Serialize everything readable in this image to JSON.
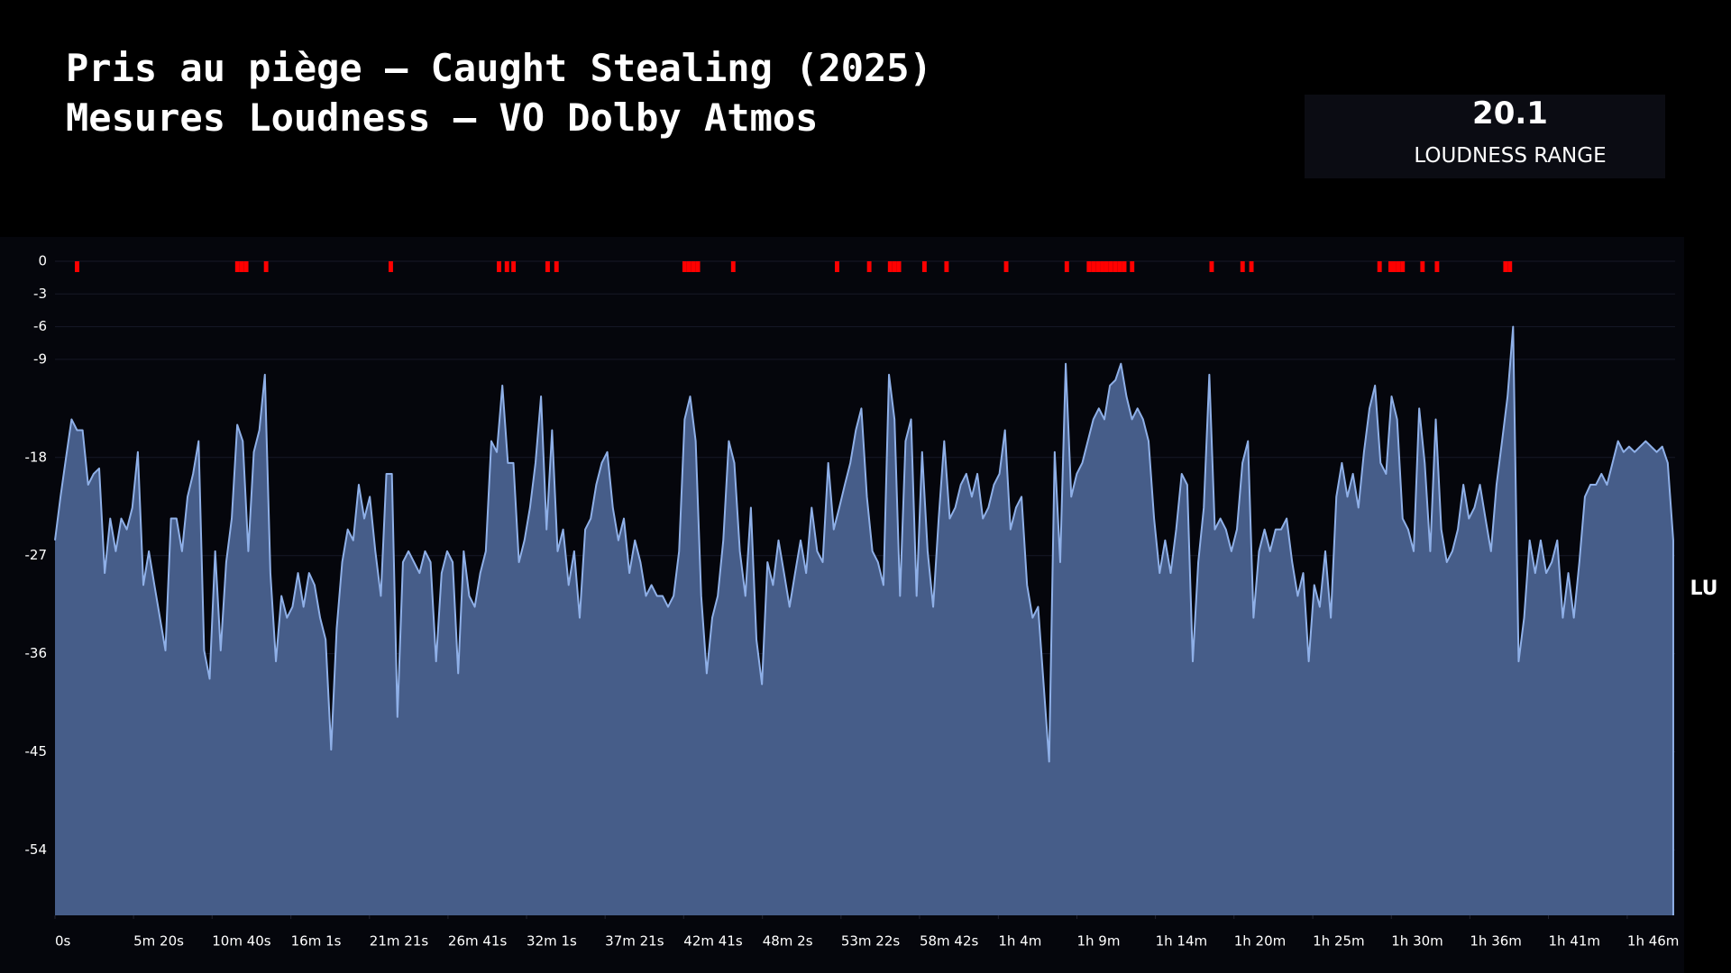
{
  "chart_data": {
    "type": "area",
    "title_lines": [
      "Pris au piège – Caught Stealing (2025)",
      "Mesures Loudness – VO Dolby Atmos"
    ],
    "loudness_range": {
      "value": 20.1,
      "label": "LOUDNESS RANGE"
    },
    "y_label": "LU",
    "ylim": [
      -60,
      0
    ],
    "yticks": [
      0,
      -3,
      -6,
      -9,
      -18,
      -27,
      -36,
      -45,
      -54
    ],
    "zero_tick_color": "#f2c94c",
    "grid": true,
    "xlim": [
      0,
      6600
    ],
    "xticks": [
      {
        "value": 0,
        "label": "0s"
      },
      {
        "value": 320,
        "label": "5m 20s"
      },
      {
        "value": 640,
        "label": "10m 40s"
      },
      {
        "value": 961,
        "label": "16m 1s"
      },
      {
        "value": 1281,
        "label": "21m 21s"
      },
      {
        "value": 1601,
        "label": "26m 41s"
      },
      {
        "value": 1921,
        "label": "32m 1s"
      },
      {
        "value": 2241,
        "label": "37m 21s"
      },
      {
        "value": 2561,
        "label": "42m 41s"
      },
      {
        "value": 2882,
        "label": "48m 2s"
      },
      {
        "value": 3202,
        "label": "53m 22s"
      },
      {
        "value": 3522,
        "label": "58m 42s"
      },
      {
        "value": 3843,
        "label": "1h 4m"
      },
      {
        "value": 4163,
        "label": "1h 9m"
      },
      {
        "value": 4483,
        "label": "1h 14m"
      },
      {
        "value": 4803,
        "label": "1h 20m"
      },
      {
        "value": 5124,
        "label": "1h 25m"
      },
      {
        "value": 5444,
        "label": "1h 30m"
      },
      {
        "value": 5764,
        "label": "1h 36m"
      },
      {
        "value": 6084,
        "label": "1h 41m"
      },
      {
        "value": 6405,
        "label": "1h 46m"
      }
    ],
    "x": [
      0,
      22.5,
      45,
      67.5,
      90,
      112.5,
      135,
      157.5,
      180,
      202.5,
      225,
      247.5,
      270,
      292.5,
      315,
      337.5,
      360,
      382.5,
      405,
      427.5,
      450,
      472.5,
      495,
      517.5,
      540,
      562.5,
      585,
      607.5,
      630,
      652.5,
      675,
      697.5,
      720,
      742.5,
      765,
      787.5,
      810,
      832.5,
      855,
      877.5,
      900,
      922.5,
      945,
      967.5,
      990,
      1012.5,
      1035,
      1057.5,
      1080,
      1102.5,
      1125,
      1147.5,
      1170,
      1192.5,
      1215,
      1237.5,
      1260,
      1282.5,
      1305,
      1327.5,
      1350,
      1372.5,
      1395,
      1417.5,
      1440,
      1462.5,
      1485,
      1507.5,
      1530,
      1552.5,
      1575,
      1597.5,
      1620,
      1642.5,
      1665,
      1687.5,
      1710,
      1732.5,
      1755,
      1777.5,
      1800,
      1822.5,
      1845,
      1867.5,
      1890,
      1912.5,
      1935,
      1957.5,
      1980,
      2002.5,
      2025,
      2047.5,
      2070,
      2092.5,
      2115,
      2137.5,
      2160,
      2182.5,
      2205,
      2227.5,
      2250,
      2272.5,
      2295,
      2317.5,
      2340,
      2362.5,
      2385,
      2407.5,
      2430,
      2452.5,
      2475,
      2497.5,
      2520,
      2542.5,
      2565,
      2587.5,
      2610,
      2632.5,
      2655,
      2677.5,
      2700,
      2722.5,
      2745,
      2767.5,
      2790,
      2812.5,
      2835,
      2857.5,
      2880,
      2902.5,
      2925,
      2947.5,
      2970,
      2992.5,
      3015,
      3037.5,
      3060,
      3082.5,
      3105,
      3127.5,
      3150,
      3172.5,
      3195,
      3217.5,
      3240,
      3262.5,
      3285,
      3307.5,
      3330,
      3352.5,
      3375,
      3397.5,
      3420,
      3442.5,
      3465,
      3487.5,
      3510,
      3532.5,
      3555,
      3577.5,
      3600,
      3622.5,
      3645,
      3667.5,
      3690,
      3712.5,
      3735,
      3757.5,
      3780,
      3802.5,
      3825,
      3847.5,
      3870,
      3892.5,
      3915,
      3937.5,
      3960,
      3982.5,
      4005,
      4027.5,
      4050,
      4072.5,
      4095,
      4117.5,
      4140,
      4162.5,
      4185,
      4207.5,
      4230,
      4252.5,
      4275,
      4297.5,
      4320,
      4342.5,
      4365,
      4387.5,
      4410,
      4432.5,
      4455,
      4477.5,
      4500,
      4522.5,
      4545,
      4567.5,
      4590,
      4612.5,
      4635,
      4657.5,
      4680,
      4702.5,
      4725,
      4747.5,
      4770,
      4792.5,
      4815,
      4837.5,
      4860,
      4882.5,
      4905,
      4927.5,
      4950,
      4972.5,
      4995,
      5017.5,
      5040,
      5062.5,
      5085,
      5107.5,
      5130,
      5152.5,
      5175,
      5197.5,
      5220,
      5242.5,
      5265,
      5287.5,
      5310,
      5332.5,
      5355,
      5377.5,
      5400,
      5422.5,
      5445,
      5467.5,
      5490,
      5512.5,
      5535,
      5557.5,
      5580,
      5602.5,
      5625,
      5647.5,
      5670,
      5692.5,
      5715,
      5737.5,
      5760,
      5782.5,
      5805,
      5827.5,
      5850,
      5872.5,
      5895,
      5917.5,
      5940,
      5962.5,
      5985,
      6007.5,
      6030,
      6052.5,
      6075,
      6097.5,
      6120,
      6142.5,
      6165,
      6187.5,
      6210,
      6232.5,
      6255,
      6277.5,
      6300,
      6322.5,
      6345,
      6367.5,
      6390,
      6412.5,
      6435,
      6457.5,
      6480,
      6502.5,
      6525,
      6547.5,
      6570,
      6592.5
    ],
    "series": [
      {
        "color": "#8fb0e8",
        "fill": "#465d89",
        "values": [
          -25.6,
          -21.6,
          -18.0,
          -14.5,
          -15.5,
          -15.5,
          -20.5,
          -19.5,
          -19.0,
          -28.6,
          -23.6,
          -26.6,
          -23.6,
          -24.6,
          -22.6,
          -17.5,
          -29.7,
          -26.6,
          -29.7,
          -32.7,
          -35.7,
          -23.6,
          -23.6,
          -26.6,
          -21.6,
          -19.5,
          -16.5,
          -35.7,
          -38.3,
          -26.6,
          -35.7,
          -27.6,
          -23.6,
          -15.0,
          -16.5,
          -26.6,
          -17.5,
          -15.5,
          -10.4,
          -28.6,
          -36.7,
          -30.7,
          -32.7,
          -31.7,
          -28.6,
          -31.7,
          -28.6,
          -29.7,
          -32.7,
          -34.7,
          -44.8,
          -33.7,
          -27.6,
          -24.6,
          -25.6,
          -20.5,
          -23.6,
          -21.6,
          -26.6,
          -30.7,
          -19.5,
          -19.5,
          -41.8,
          -27.6,
          -26.6,
          -27.6,
          -28.6,
          -26.6,
          -27.6,
          -36.7,
          -28.6,
          -26.6,
          -27.6,
          -37.8,
          -26.6,
          -30.7,
          -31.7,
          -28.6,
          -26.6,
          -16.5,
          -17.5,
          -11.4,
          -18.5,
          -18.5,
          -27.6,
          -25.6,
          -22.6,
          -18.5,
          -12.4,
          -24.6,
          -15.5,
          -26.6,
          -24.6,
          -29.7,
          -26.6,
          -32.7,
          -24.6,
          -23.6,
          -20.5,
          -18.5,
          -17.5,
          -22.6,
          -25.6,
          -23.6,
          -28.6,
          -25.6,
          -27.6,
          -30.7,
          -29.7,
          -30.7,
          -30.7,
          -31.7,
          -30.7,
          -26.6,
          -14.5,
          -12.4,
          -16.5,
          -30.7,
          -37.8,
          -32.7,
          -30.7,
          -25.6,
          -16.5,
          -18.5,
          -26.6,
          -30.7,
          -22.6,
          -34.7,
          -38.8,
          -27.6,
          -29.7,
          -25.6,
          -28.6,
          -31.7,
          -28.6,
          -25.6,
          -28.6,
          -22.6,
          -26.6,
          -27.6,
          -18.5,
          -24.6,
          -22.6,
          -20.5,
          -18.5,
          -15.5,
          -13.5,
          -21.6,
          -26.6,
          -27.6,
          -29.7,
          -10.4,
          -14.5,
          -30.7,
          -16.5,
          -14.5,
          -30.7,
          -17.5,
          -26.6,
          -31.7,
          -23.6,
          -16.5,
          -23.6,
          -22.6,
          -20.5,
          -19.5,
          -21.6,
          -19.5,
          -23.6,
          -22.6,
          -20.5,
          -19.5,
          -15.5,
          -24.6,
          -22.6,
          -21.6,
          -29.7,
          -32.7,
          -31.7,
          -38.8,
          -45.9,
          -17.5,
          -27.6,
          -9.4,
          -21.6,
          -19.5,
          -18.5,
          -16.5,
          -14.5,
          -13.5,
          -14.5,
          -11.4,
          -10.9,
          -9.4,
          -12.4,
          -14.5,
          -13.5,
          -14.5,
          -16.5,
          -23.6,
          -28.6,
          -25.6,
          -28.6,
          -24.6,
          -19.5,
          -20.5,
          -36.7,
          -27.6,
          -22.6,
          -10.4,
          -24.6,
          -23.6,
          -24.6,
          -26.6,
          -24.6,
          -18.5,
          -16.5,
          -32.7,
          -26.6,
          -24.6,
          -26.6,
          -24.6,
          -24.6,
          -23.6,
          -27.6,
          -30.7,
          -28.6,
          -36.7,
          -29.7,
          -31.7,
          -26.6,
          -32.7,
          -21.6,
          -18.5,
          -21.6,
          -19.5,
          -22.6,
          -17.5,
          -13.5,
          -11.4,
          -18.5,
          -19.5,
          -12.4,
          -14.5,
          -23.6,
          -24.6,
          -26.6,
          -13.5,
          -18.5,
          -26.6,
          -14.5,
          -24.6,
          -27.6,
          -26.6,
          -24.6,
          -20.5,
          -23.6,
          -22.6,
          -20.5,
          -23.6,
          -26.6,
          -20.5,
          -16.5,
          -12.4,
          -6.0,
          -36.7,
          -32.7,
          -25.6,
          -28.6,
          -25.6,
          -28.6,
          -27.6,
          -25.6,
          -32.7,
          -28.6,
          -32.7,
          -27.6,
          -21.6,
          -20.5,
          -20.5,
          -19.5,
          -20.5,
          -18.5,
          -16.5,
          -17.5,
          -17.0,
          -17.5,
          -17.0,
          -16.5,
          -17.0,
          -17.5,
          -17.0,
          -18.5,
          -25.6
        ]
      }
    ],
    "markers": {
      "color": "#ff0000",
      "x": [
        90,
        743,
        761,
        779,
        860,
        1368,
        1809,
        1841,
        1868,
        2007,
        2043,
        2565,
        2583,
        2601,
        2619,
        2763,
        3186,
        3317,
        3402,
        3420,
        3438,
        3542,
        3632,
        3875,
        4122,
        4212,
        4230,
        4248,
        4266,
        4284,
        4302,
        4320,
        4338,
        4356,
        4388,
        4712,
        4838,
        4874,
        5396,
        5441,
        5454,
        5472,
        5490,
        5571,
        5630,
        5909,
        5927
      ]
    }
  }
}
